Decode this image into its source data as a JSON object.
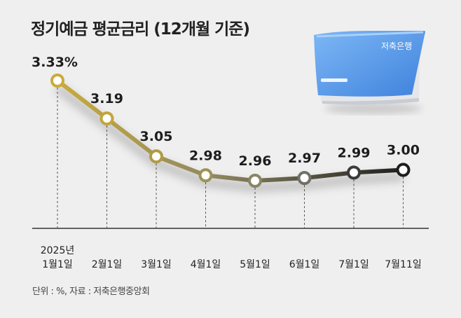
{
  "title": "정기예금 평균금리 (12개월 기준)",
  "footnote": "단위 : %, 자료 : 저축은행중앙회",
  "book_label": "저축은행",
  "chart_data": {
    "type": "line",
    "title": "정기예금 평균금리 (12개월 기준)",
    "unit": "%",
    "year_label": "2025년",
    "categories": [
      "1월1일",
      "2월1일",
      "3월1일",
      "4월1일",
      "5월1일",
      "6월1일",
      "7월1일",
      "7월11일"
    ],
    "values": [
      3.33,
      3.19,
      3.05,
      2.98,
      2.96,
      2.97,
      2.99,
      3.0
    ],
    "value_labels": [
      "3.33%",
      "3.19",
      "3.05",
      "2.98",
      "2.96",
      "2.97",
      "2.99",
      "3.00"
    ],
    "ylim": [
      2.8,
      3.4
    ],
    "grid": false,
    "colors": {
      "start": "#c9ab3c",
      "mid": "#8f8862",
      "end": "#1e1e1e",
      "point_fill": "#ffffff",
      "axis": "#333333",
      "guide": "#555555"
    }
  },
  "colors": {
    "background": "#efefef",
    "book_blue": "#5b9bea"
  }
}
